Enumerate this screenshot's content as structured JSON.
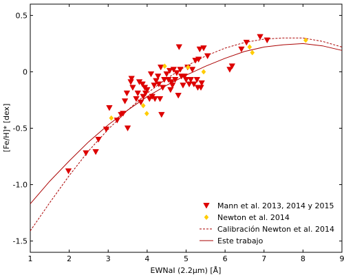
{
  "chart_data": {
    "type": "scatter",
    "title": "",
    "xlabel": "EWNaI (2.2μm) [Å]",
    "ylabel": "[Fe/H]* [dex]",
    "xlim": [
      1,
      9
    ],
    "ylim": [
      -1.6,
      0.6
    ],
    "xticks": [
      1,
      2,
      3,
      4,
      5,
      6,
      7,
      8,
      9
    ],
    "yticks": [
      -1.5,
      -1.0,
      -0.5,
      0,
      0.5
    ],
    "ytick_labels": [
      "-1.5",
      "-1.0",
      "-0.5",
      "0",
      "0.5"
    ],
    "grid": false,
    "legend_position": "bottom-right",
    "series": [
      {
        "name": "Mann et al. 2013, 2014 y 2015",
        "type": "scatter",
        "marker": "triangle-down",
        "color": "#dd0000",
        "points": [
          [
            1.98,
            -0.88
          ],
          [
            2.43,
            -0.72
          ],
          [
            2.68,
            -0.71
          ],
          [
            2.75,
            -0.6
          ],
          [
            2.95,
            -0.51
          ],
          [
            3.03,
            -0.32
          ],
          [
            3.23,
            -0.43
          ],
          [
            3.33,
            -0.38
          ],
          [
            3.38,
            -0.37
          ],
          [
            3.43,
            -0.26
          ],
          [
            3.48,
            -0.19
          ],
          [
            3.5,
            -0.5
          ],
          [
            3.58,
            -0.09
          ],
          [
            3.6,
            -0.06
          ],
          [
            3.63,
            -0.14
          ],
          [
            3.72,
            -0.24
          ],
          [
            3.76,
            -0.19
          ],
          [
            3.8,
            -0.09
          ],
          [
            3.84,
            -0.27
          ],
          [
            3.88,
            -0.11
          ],
          [
            3.9,
            -0.22
          ],
          [
            3.94,
            -0.14
          ],
          [
            3.96,
            -0.19
          ],
          [
            4.0,
            -0.16
          ],
          [
            4.06,
            -0.24
          ],
          [
            4.1,
            -0.02
          ],
          [
            4.13,
            -0.22
          ],
          [
            4.18,
            -0.12
          ],
          [
            4.2,
            -0.24
          ],
          [
            4.23,
            -0.08
          ],
          [
            4.28,
            -0.04
          ],
          [
            4.3,
            -0.11
          ],
          [
            4.33,
            -0.24
          ],
          [
            4.35,
            0.04
          ],
          [
            4.37,
            -0.38
          ],
          [
            4.4,
            -0.14
          ],
          [
            4.44,
            -0.07
          ],
          [
            4.5,
            -0.02
          ],
          [
            4.55,
            -0.07
          ],
          [
            4.58,
            0.01
          ],
          [
            4.6,
            -0.16
          ],
          [
            4.62,
            -0.09
          ],
          [
            4.65,
            -0.12
          ],
          [
            4.68,
            0.02
          ],
          [
            4.72,
            -0.07
          ],
          [
            4.76,
            -0.01
          ],
          [
            4.8,
            -0.21
          ],
          [
            4.82,
            0.22
          ],
          [
            4.85,
            0.02
          ],
          [
            4.88,
            -0.04
          ],
          [
            4.92,
            -0.12
          ],
          [
            4.96,
            -0.04
          ],
          [
            5.0,
            -0.07
          ],
          [
            5.04,
            0.04
          ],
          [
            5.08,
            -0.11
          ],
          [
            5.12,
            -0.07
          ],
          [
            5.16,
            0.02
          ],
          [
            5.2,
            -0.11
          ],
          [
            5.24,
            0.1
          ],
          [
            5.28,
            -0.07
          ],
          [
            5.3,
            -0.14
          ],
          [
            5.32,
            0.11
          ],
          [
            5.35,
            0.2
          ],
          [
            5.38,
            -0.14
          ],
          [
            5.4,
            -0.1
          ],
          [
            5.45,
            0.21
          ],
          [
            5.55,
            0.14
          ],
          [
            6.12,
            0.02
          ],
          [
            6.18,
            0.05
          ],
          [
            6.42,
            0.2
          ],
          [
            6.55,
            0.26
          ],
          [
            6.9,
            0.31
          ],
          [
            7.08,
            0.28
          ]
        ]
      },
      {
        "name": "Newton et al. 2014",
        "type": "scatter",
        "marker": "diamond",
        "color": "#ffcc00",
        "points": [
          [
            3.08,
            -0.41
          ],
          [
            3.9,
            -0.3
          ],
          [
            3.99,
            -0.37
          ],
          [
            4.45,
            0.05
          ],
          [
            5.05,
            0.04
          ],
          [
            5.45,
            0.0
          ],
          [
            6.63,
            0.22
          ],
          [
            6.7,
            0.17
          ],
          [
            8.07,
            0.28
          ]
        ]
      },
      {
        "name": "Calibración Newton et al. 2014",
        "type": "line",
        "style": "dashed",
        "color": "#aa0000",
        "x": [
          1.0,
          1.5,
          2.0,
          2.5,
          3.0,
          3.5,
          4.0,
          4.5,
          5.0,
          5.5,
          6.0,
          6.5,
          7.0,
          7.5,
          8.0,
          8.5,
          9.0
        ],
        "y": [
          -1.41,
          -1.16,
          -0.92,
          -0.7,
          -0.51,
          -0.34,
          -0.19,
          -0.06,
          0.05,
          0.14,
          0.21,
          0.26,
          0.29,
          0.3,
          0.3,
          0.27,
          0.22
        ]
      },
      {
        "name": "Este trabajo",
        "type": "line",
        "style": "solid",
        "color": "#aa0000",
        "x": [
          1.0,
          1.5,
          2.0,
          2.5,
          3.0,
          3.5,
          4.0,
          4.5,
          5.0,
          5.5,
          6.0,
          6.5,
          7.0,
          7.5,
          8.0,
          8.5,
          9.0
        ],
        "y": [
          -1.17,
          -0.97,
          -0.79,
          -0.62,
          -0.47,
          -0.34,
          -0.22,
          -0.12,
          -0.03,
          0.05,
          0.12,
          0.18,
          0.22,
          0.24,
          0.25,
          0.23,
          0.19
        ]
      }
    ]
  }
}
